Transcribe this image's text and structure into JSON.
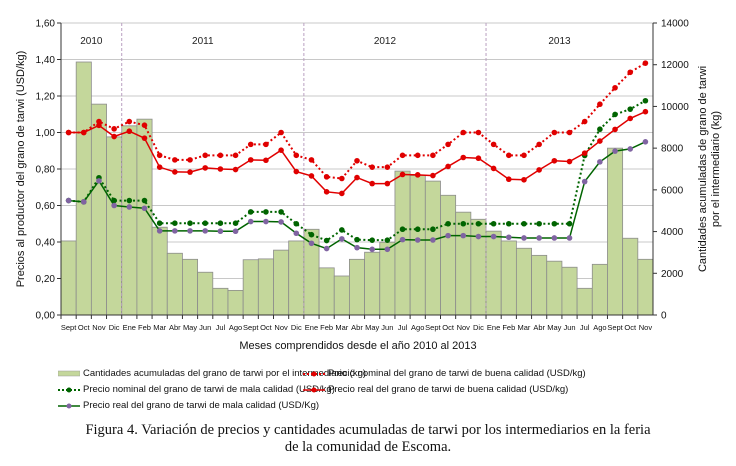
{
  "chart_data": {
    "type": "bar+line",
    "xlabel": "Meses comprendidos desde el año 2010 al 2013",
    "ylabel": "Precios al productor del grano de tarwi (USD/kg)",
    "ylabel_right": [
      "Cantidades acumuladas de grano de tarwi",
      "por el intermediario (kg)"
    ],
    "ylim": [
      0,
      1.6
    ],
    "yticks": [
      "0,00",
      "0,20",
      "0,40",
      "0,60",
      "0,80",
      "1,00",
      "1,20",
      "1,40",
      "1,60"
    ],
    "ylim_right": [
      0,
      14000
    ],
    "yticks_right": [
      "0",
      "2000",
      "4000",
      "6000",
      "8000",
      "10000",
      "12000",
      "14000"
    ],
    "grid": true,
    "legend_placement": "bottom",
    "years": [
      {
        "label": "2010",
        "start": 0,
        "end": 4
      },
      {
        "label": "2011",
        "start": 4,
        "end": 16
      },
      {
        "label": "2012",
        "start": 16,
        "end": 28
      },
      {
        "label": "2013",
        "start": 28,
        "end": 39
      }
    ],
    "categories": [
      "Sept",
      "Oct",
      "Nov",
      "Dic",
      "Ene",
      "Feb",
      "Mar",
      "Abr",
      "May",
      "Jun",
      "Jul",
      "Ago",
      "Sept",
      "Oct",
      "Nov",
      "Dic",
      "Ene",
      "Feb",
      "Mar",
      "Abr",
      "May",
      "Jun",
      "Jul",
      "Ago",
      "Sept",
      "Oct",
      "Nov",
      "Dic",
      "Ene",
      "Feb",
      "Mar",
      "Abr",
      "May",
      "Jun",
      "Jul",
      "Ago",
      "Sept",
      "Oct",
      "Nov"
    ],
    "bars": {
      "name": "Cantidades acumuladas  del grano de tarwi por el intermediario (kg)",
      "axis": "right",
      "color": "#c4d79b",
      "values": [
        3550,
        12130,
        10110,
        8540,
        9070,
        9390,
        4210,
        2960,
        2670,
        2050,
        1280,
        1180,
        2650,
        2690,
        3110,
        3550,
        4110,
        2260,
        1870,
        2670,
        3010,
        3490,
        6900,
        6690,
        6420,
        5740,
        4930,
        4590,
        4020,
        3550,
        3200,
        2860,
        2580,
        2290,
        1280,
        2430,
        8000,
        3680,
        2670
      ]
    },
    "series": [
      {
        "name": "Precio nominal del  grano de tarwi de buena calidad (USD/kg)",
        "color": "#e00000",
        "style": "dotted",
        "marker_color": "#e00000",
        "values": [
          1.0,
          1.0,
          1.06,
          1.02,
          1.06,
          1.04,
          0.875,
          0.85,
          0.85,
          0.875,
          0.875,
          0.875,
          0.935,
          0.935,
          1.0,
          0.875,
          0.85,
          0.757,
          0.748,
          0.845,
          0.81,
          0.81,
          0.875,
          0.875,
          0.875,
          0.935,
          1.0,
          1.0,
          0.935,
          0.875,
          0.875,
          0.935,
          1.0,
          1.0,
          1.06,
          1.155,
          1.245,
          1.33,
          1.38
        ]
      },
      {
        "name": "Precio nominal del grano de tarwi de mala calidad (USD/kg)",
        "color": "#006400",
        "style": "dotted",
        "marker_color": "#006400",
        "values": [
          0.627,
          0.62,
          0.752,
          0.627,
          0.627,
          0.627,
          0.503,
          0.503,
          0.503,
          0.503,
          0.503,
          0.503,
          0.565,
          0.565,
          0.565,
          0.5,
          0.44,
          0.408,
          0.466,
          0.413,
          0.41,
          0.41,
          0.47,
          0.47,
          0.47,
          0.5,
          0.5,
          0.5,
          0.5,
          0.5,
          0.5,
          0.5,
          0.5,
          0.5,
          0.874,
          1.018,
          1.099,
          1.128,
          1.174
        ]
      },
      {
        "name": "Precio real del grano de tarwi de buena calidad (USD/kg)",
        "color": "#e00000",
        "style": "solid",
        "marker_color": "#e00000",
        "values": [
          1.0,
          1.0,
          1.039,
          0.978,
          1.007,
          0.969,
          0.81,
          0.784,
          0.783,
          0.806,
          0.8,
          0.797,
          0.85,
          0.848,
          0.903,
          0.786,
          0.762,
          0.675,
          0.666,
          0.753,
          0.72,
          0.72,
          0.77,
          0.768,
          0.764,
          0.814,
          0.863,
          0.859,
          0.803,
          0.744,
          0.741,
          0.795,
          0.845,
          0.841,
          0.887,
          0.953,
          1.017,
          1.077,
          1.114
        ]
      },
      {
        "name": "Precio real del grano de tarwi de mala calidad (USD/Kg)",
        "color": "#006400",
        "style": "solid",
        "marker_color": "#8064a2",
        "values": [
          0.627,
          0.62,
          0.735,
          0.6,
          0.592,
          0.585,
          0.461,
          0.461,
          0.461,
          0.461,
          0.459,
          0.459,
          0.512,
          0.512,
          0.51,
          0.448,
          0.393,
          0.364,
          0.417,
          0.369,
          0.36,
          0.36,
          0.413,
          0.411,
          0.411,
          0.435,
          0.435,
          0.43,
          0.43,
          0.426,
          0.422,
          0.422,
          0.422,
          0.422,
          0.731,
          0.839,
          0.898,
          0.91,
          0.949
        ]
      }
    ]
  },
  "caption": {
    "line1": "Figura 4. Variación de precios y cantidades acumuladas de tarwi por los intermediarios en la feria",
    "line2": "de la comunidad de Escoma."
  }
}
